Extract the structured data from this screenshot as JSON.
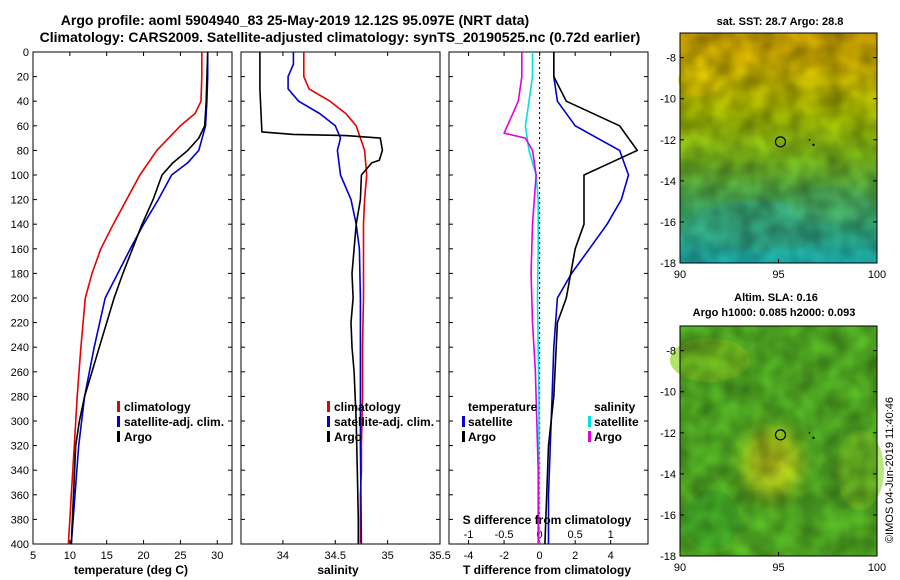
{
  "header": {
    "title_line1": "Argo profile: aoml 5904940_83 25-May-2019 12.12S 95.097E (NRT data)",
    "title_line2": "Climatology: CARS2009. Satellite-adjusted climatology: synTS_20190525.nc (0.72d earlier)"
  },
  "watermark": "©IMOS 04-Jun-2019 11:40:46",
  "colors": {
    "climatology": "#e60000",
    "satellite": "#0000d0",
    "argo": "#000000",
    "salinity_satellite": "#00e0e0",
    "salinity_argo": "#e000e0"
  },
  "chart_data": [
    {
      "type": "line",
      "panel": "temperature",
      "xlabel": "temperature (deg C)",
      "ylabel": "",
      "xlim": [
        5,
        32
      ],
      "xticks": [
        5,
        10,
        15,
        20,
        25,
        30
      ],
      "ylim": [
        400,
        0
      ],
      "yticks": [
        0,
        20,
        40,
        60,
        80,
        100,
        120,
        140,
        160,
        180,
        200,
        220,
        240,
        260,
        280,
        300,
        320,
        340,
        360,
        380,
        400
      ],
      "legend": {
        "placement": "lower-right",
        "items": [
          "climatology",
          "satellite-adj. clim.",
          "Argo"
        ]
      },
      "series": [
        {
          "name": "climatology",
          "color": "#e60000",
          "x": [
            27.9,
            27.9,
            27.8,
            27.0,
            25.0,
            21.8,
            19.5,
            17.7,
            15.9,
            14.2,
            13.0,
            12.1,
            11.5,
            11.0,
            10.6,
            10.2,
            9.8
          ],
          "y": [
            0,
            20,
            40,
            50,
            60,
            80,
            100,
            120,
            140,
            160,
            180,
            200,
            240,
            280,
            320,
            360,
            400
          ]
        },
        {
          "name": "satellite-adj. clim.",
          "color": "#0000d0",
          "x": [
            28.7,
            28.7,
            28.6,
            28.5,
            28.4,
            27.5,
            26.0,
            23.8,
            22.0,
            20.0,
            18.2,
            16.5,
            14.8,
            13.3,
            12.0,
            11.2,
            10.7,
            10.2
          ],
          "y": [
            0,
            20,
            40,
            50,
            60,
            80,
            90,
            100,
            120,
            140,
            160,
            180,
            200,
            240,
            280,
            320,
            360,
            400
          ]
        },
        {
          "name": "Argo",
          "color": "#000000",
          "x": [
            28.7,
            28.6,
            28.5,
            28.3,
            27.5,
            26.0,
            24.0,
            22.5,
            21.3,
            19.8,
            18.5,
            17.2,
            16.0,
            15.0,
            14.0,
            13.0,
            12.0,
            11.3,
            10.8,
            10.5,
            10.2
          ],
          "y": [
            0,
            20,
            40,
            60,
            70,
            80,
            90,
            100,
            120,
            140,
            160,
            180,
            200,
            220,
            240,
            260,
            280,
            300,
            320,
            360,
            400
          ]
        }
      ]
    },
    {
      "type": "line",
      "panel": "salinity",
      "xlabel": "salinity",
      "xlim": [
        33.6,
        35.5
      ],
      "xticks": [
        34,
        34.5,
        35,
        35.5
      ],
      "ylim": [
        400,
        0
      ],
      "legend": {
        "placement": "lower-right",
        "items": [
          "climatology",
          "satellite-adj. clim.",
          "Argo"
        ]
      },
      "series": [
        {
          "name": "climatology",
          "color": "#e60000",
          "x": [
            34.2,
            34.2,
            34.25,
            34.45,
            34.6,
            34.7,
            34.78,
            34.8,
            34.78,
            34.77,
            34.77,
            34.77,
            34.76,
            34.76,
            34.75,
            34.75,
            34.74,
            34.74
          ],
          "y": [
            0,
            20,
            30,
            40,
            50,
            60,
            80,
            100,
            120,
            140,
            160,
            200,
            240,
            280,
            320,
            340,
            360,
            400
          ]
        },
        {
          "name": "satellite-adj. clim.",
          "color": "#0000d0",
          "x": [
            34.1,
            34.1,
            34.05,
            34.05,
            34.15,
            34.35,
            34.5,
            34.55,
            34.52,
            34.55,
            34.65,
            34.7,
            34.73,
            34.74,
            34.74,
            34.74,
            34.74,
            34.75
          ],
          "y": [
            0,
            10,
            20,
            30,
            40,
            50,
            60,
            70,
            80,
            100,
            120,
            140,
            160,
            200,
            240,
            280,
            320,
            400
          ]
        },
        {
          "name": "Argo",
          "color": "#000000",
          "x": [
            33.78,
            33.78,
            33.8,
            34.1,
            34.6,
            34.93,
            34.95,
            34.92,
            34.85,
            34.75,
            34.74,
            34.7,
            34.68,
            34.66,
            34.67,
            34.65,
            34.66,
            34.68,
            34.7,
            34.71,
            34.72,
            34.72
          ],
          "y": [
            0,
            30,
            65,
            67,
            68,
            70,
            80,
            88,
            90,
            100,
            120,
            140,
            160,
            180,
            200,
            220,
            240,
            260,
            300,
            340,
            380,
            400
          ]
        }
      ]
    },
    {
      "type": "line",
      "panel": "difference",
      "xlabel": "T difference from climatology",
      "xlabel_top": "S difference from climatology",
      "xlim": [
        -5.1,
        6.1
      ],
      "xticks": [
        -4,
        -2,
        0,
        2,
        4
      ],
      "top_xlim": [
        -1.275,
        1.525
      ],
      "top_xticks": [
        -1,
        -0.5,
        0,
        0.5,
        1
      ],
      "top_xtick_labels": [
        "-1",
        "-0.5",
        "0",
        "0.5",
        "1"
      ],
      "ylim": [
        400,
        0
      ],
      "legend": {
        "placement": "lower",
        "left_title": "temperature",
        "left_items": [
          "satellite",
          "Argo"
        ],
        "right_title": "salinity",
        "right_items": [
          "satellite",
          "Argo"
        ]
      },
      "series": [
        {
          "name": "temperature satellite",
          "color": "#0000d0",
          "axis": "T",
          "x": [
            0.8,
            0.8,
            1.0,
            2.0,
            4.5,
            5.0,
            4.6,
            3.8,
            2.8,
            1.8,
            1.0,
            0.8,
            0.7,
            0.6,
            0.5,
            0.5
          ],
          "y": [
            0,
            20,
            40,
            60,
            80,
            100,
            120,
            140,
            160,
            180,
            200,
            240,
            280,
            320,
            360,
            400
          ]
        },
        {
          "name": "temperature Argo",
          "color": "#000000",
          "axis": "T",
          "x": [
            0.8,
            0.8,
            1.5,
            4.5,
            5.5,
            4.0,
            2.5,
            2.5,
            2.0,
            1.5,
            1.0,
            0.8,
            0.5,
            0.4,
            0.3
          ],
          "y": [
            0,
            20,
            40,
            60,
            80,
            90,
            100,
            140,
            160,
            200,
            220,
            280,
            320,
            360,
            400
          ]
        },
        {
          "name": "salinity satellite",
          "color": "#00e0e0",
          "axis": "S",
          "x": [
            -0.1,
            -0.1,
            -0.15,
            -0.2,
            -0.15,
            -0.05,
            -0.02,
            -0.02,
            -0.03,
            -0.02,
            -0.01,
            -0.01,
            -0.01,
            -0.01
          ],
          "y": [
            0,
            20,
            40,
            60,
            80,
            100,
            120,
            160,
            200,
            240,
            280,
            320,
            360,
            400
          ]
        },
        {
          "name": "salinity Argo",
          "color": "#e000e0",
          "axis": "S",
          "x": [
            -0.25,
            -0.25,
            -0.3,
            -0.5,
            -0.2,
            -0.1,
            -0.05,
            -0.1,
            -0.12,
            -0.1,
            -0.06,
            -0.04,
            -0.02,
            -0.02
          ],
          "y": [
            0,
            20,
            40,
            66,
            70,
            80,
            100,
            140,
            180,
            220,
            260,
            300,
            340,
            400
          ]
        }
      ]
    },
    {
      "type": "heatmap",
      "panel": "sst_map",
      "title": "sat. SST: 28.7 Argo: 28.8",
      "xlim": [
        90,
        100
      ],
      "xticks": [
        90,
        95,
        100
      ],
      "ylim": [
        -18,
        -6.8
      ],
      "yticks": [
        -8,
        -10,
        -12,
        -14,
        -16,
        -18
      ],
      "marker": {
        "lon": 95.1,
        "lat": -12.1
      }
    },
    {
      "type": "heatmap",
      "panel": "sla_map",
      "title_line1": "Altim. SLA: 0.16",
      "title_line2": "Argo h1000: 0.085 h2000: 0.093",
      "xlim": [
        90,
        100
      ],
      "xticks": [
        90,
        95,
        100
      ],
      "ylim": [
        -18,
        -6.8
      ],
      "yticks": [
        -8,
        -10,
        -12,
        -14,
        -16,
        -18
      ],
      "marker": {
        "lon": 95.1,
        "lat": -12.1
      }
    }
  ]
}
